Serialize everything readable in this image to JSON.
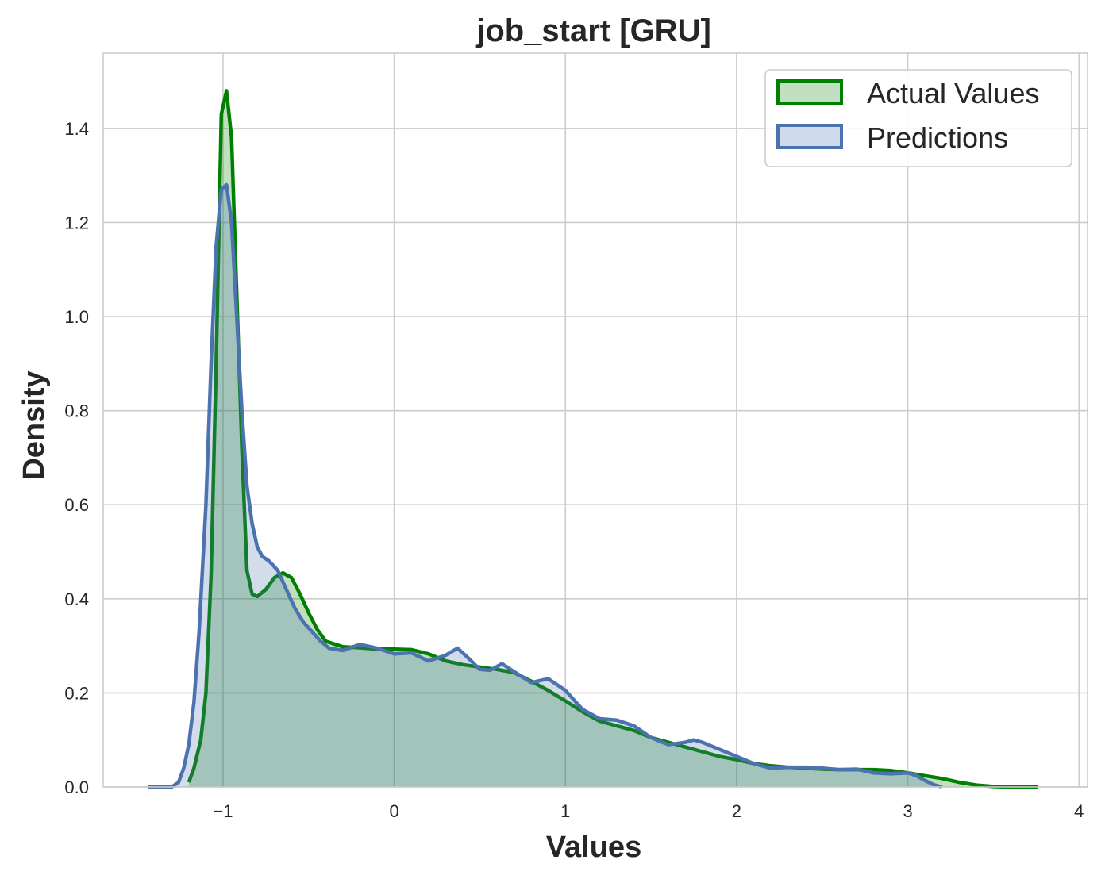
{
  "chart_data": {
    "type": "area",
    "title": "job_start [GRU]",
    "xlabel": "Values",
    "ylabel": "Density",
    "xlim": [
      -1.7,
      4.05
    ],
    "ylim": [
      0,
      1.56
    ],
    "x_ticks": [
      -1,
      0,
      1,
      2,
      3,
      4
    ],
    "x_tick_labels": [
      "−1",
      "0",
      "1",
      "2",
      "3",
      "4"
    ],
    "y_ticks": [
      0,
      0.2,
      0.4,
      0.6,
      0.8,
      1.0,
      1.2,
      1.4
    ],
    "y_tick_labels": [
      "0.0",
      "0.2",
      "0.4",
      "0.6",
      "0.8",
      "1.0",
      "1.2",
      "1.4"
    ],
    "grid": true,
    "legend_position": "top-right",
    "series": [
      {
        "name": "Actual Values",
        "color": "#008000",
        "fill": "#c1e0c1",
        "points": [
          [
            -1.2,
            0.01
          ],
          [
            -1.17,
            0.04
          ],
          [
            -1.13,
            0.1
          ],
          [
            -1.1,
            0.2
          ],
          [
            -1.07,
            0.45
          ],
          [
            -1.04,
            0.9
          ],
          [
            -1.01,
            1.43
          ],
          [
            -0.98,
            1.48
          ],
          [
            -0.95,
            1.38
          ],
          [
            -0.92,
            1.05
          ],
          [
            -0.89,
            0.72
          ],
          [
            -0.86,
            0.46
          ],
          [
            -0.83,
            0.41
          ],
          [
            -0.8,
            0.405
          ],
          [
            -0.75,
            0.42
          ],
          [
            -0.7,
            0.445
          ],
          [
            -0.65,
            0.455
          ],
          [
            -0.6,
            0.445
          ],
          [
            -0.55,
            0.41
          ],
          [
            -0.5,
            0.37
          ],
          [
            -0.45,
            0.335
          ],
          [
            -0.4,
            0.31
          ],
          [
            -0.3,
            0.298
          ],
          [
            -0.2,
            0.296
          ],
          [
            -0.1,
            0.293
          ],
          [
            0.0,
            0.293
          ],
          [
            0.1,
            0.292
          ],
          [
            0.2,
            0.283
          ],
          [
            0.3,
            0.268
          ],
          [
            0.4,
            0.26
          ],
          [
            0.5,
            0.255
          ],
          [
            0.6,
            0.25
          ],
          [
            0.7,
            0.243
          ],
          [
            0.8,
            0.225
          ],
          [
            0.9,
            0.205
          ],
          [
            1.0,
            0.183
          ],
          [
            1.1,
            0.16
          ],
          [
            1.2,
            0.14
          ],
          [
            1.3,
            0.13
          ],
          [
            1.4,
            0.12
          ],
          [
            1.5,
            0.105
          ],
          [
            1.6,
            0.095
          ],
          [
            1.7,
            0.085
          ],
          [
            1.8,
            0.075
          ],
          [
            1.9,
            0.065
          ],
          [
            2.0,
            0.058
          ],
          [
            2.1,
            0.05
          ],
          [
            2.2,
            0.045
          ],
          [
            2.3,
            0.042
          ],
          [
            2.4,
            0.04
          ],
          [
            2.5,
            0.038
          ],
          [
            2.6,
            0.037
          ],
          [
            2.7,
            0.037
          ],
          [
            2.8,
            0.037
          ],
          [
            2.9,
            0.035
          ],
          [
            3.0,
            0.03
          ],
          [
            3.1,
            0.024
          ],
          [
            3.2,
            0.018
          ],
          [
            3.3,
            0.01
          ],
          [
            3.4,
            0.004
          ],
          [
            3.5,
            0.001
          ],
          [
            3.6,
            0.0
          ],
          [
            3.76,
            0.0
          ]
        ]
      },
      {
        "name": "Predictions",
        "color": "#4c72b0",
        "fill": "#d0daed",
        "points": [
          [
            -1.44,
            0.0
          ],
          [
            -1.3,
            0.0
          ],
          [
            -1.26,
            0.01
          ],
          [
            -1.23,
            0.04
          ],
          [
            -1.2,
            0.09
          ],
          [
            -1.17,
            0.18
          ],
          [
            -1.14,
            0.33
          ],
          [
            -1.1,
            0.6
          ],
          [
            -1.07,
            0.9
          ],
          [
            -1.04,
            1.15
          ],
          [
            -1.01,
            1.27
          ],
          [
            -0.98,
            1.28
          ],
          [
            -0.95,
            1.2
          ],
          [
            -0.92,
            1.0
          ],
          [
            -0.89,
            0.8
          ],
          [
            -0.86,
            0.64
          ],
          [
            -0.83,
            0.56
          ],
          [
            -0.8,
            0.51
          ],
          [
            -0.77,
            0.49
          ],
          [
            -0.73,
            0.48
          ],
          [
            -0.68,
            0.46
          ],
          [
            -0.63,
            0.42
          ],
          [
            -0.58,
            0.38
          ],
          [
            -0.53,
            0.35
          ],
          [
            -0.48,
            0.33
          ],
          [
            -0.43,
            0.31
          ],
          [
            -0.38,
            0.295
          ],
          [
            -0.3,
            0.29
          ],
          [
            -0.2,
            0.303
          ],
          [
            -0.1,
            0.295
          ],
          [
            0.0,
            0.283
          ],
          [
            0.1,
            0.285
          ],
          [
            0.2,
            0.268
          ],
          [
            0.3,
            0.28
          ],
          [
            0.37,
            0.295
          ],
          [
            0.43,
            0.275
          ],
          [
            0.5,
            0.25
          ],
          [
            0.56,
            0.248
          ],
          [
            0.63,
            0.262
          ],
          [
            0.7,
            0.245
          ],
          [
            0.8,
            0.222
          ],
          [
            0.9,
            0.23
          ],
          [
            1.0,
            0.205
          ],
          [
            1.1,
            0.165
          ],
          [
            1.2,
            0.145
          ],
          [
            1.3,
            0.142
          ],
          [
            1.4,
            0.13
          ],
          [
            1.5,
            0.105
          ],
          [
            1.6,
            0.09
          ],
          [
            1.7,
            0.095
          ],
          [
            1.75,
            0.1
          ],
          [
            1.8,
            0.095
          ],
          [
            1.9,
            0.08
          ],
          [
            2.0,
            0.065
          ],
          [
            2.1,
            0.05
          ],
          [
            2.2,
            0.04
          ],
          [
            2.3,
            0.042
          ],
          [
            2.4,
            0.042
          ],
          [
            2.5,
            0.04
          ],
          [
            2.6,
            0.037
          ],
          [
            2.7,
            0.038
          ],
          [
            2.8,
            0.03
          ],
          [
            2.9,
            0.028
          ],
          [
            3.0,
            0.03
          ],
          [
            3.05,
            0.024
          ],
          [
            3.1,
            0.014
          ],
          [
            3.15,
            0.005
          ],
          [
            3.2,
            0.0
          ]
        ]
      }
    ]
  }
}
